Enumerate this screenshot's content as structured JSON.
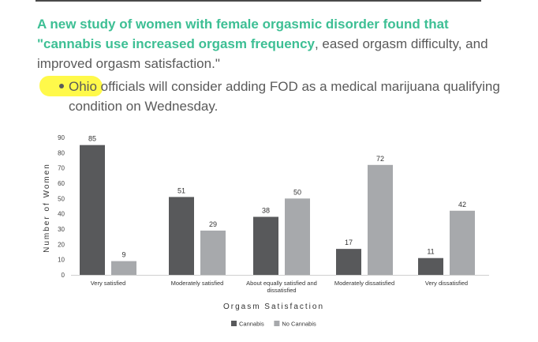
{
  "article": {
    "headline_bold": "A new study of women with female orgasmic disorder found that \"cannabis use increased orgasm frequency",
    "headline_rest": ", eased orgasm difficulty, and improved orgasm satisfaction.\"",
    "bullet_highlight": "Ohio",
    "bullet_rest": " officials will consider adding FOD as a medical marijuana qualifying condition on Wednesday."
  },
  "colors": {
    "headline": "#3dbf94",
    "highlight": "#fff94a",
    "cannabis": "#58595b",
    "no_cannabis": "#a7a9ac"
  },
  "chart_data": {
    "type": "bar",
    "categories": [
      [
        "Very satisfied"
      ],
      [
        "Moderately satisfied"
      ],
      [
        "About equally satisfied and",
        "dissatisfied"
      ],
      [
        "Moderately dissatisfied"
      ],
      [
        "Very dissatisfied"
      ]
    ],
    "series": [
      {
        "name": "Cannabis",
        "values": [
          85,
          51,
          38,
          17,
          11
        ]
      },
      {
        "name": "No Cannabis",
        "values": [
          9,
          29,
          50,
          72,
          42
        ]
      }
    ],
    "xlabel": "Orgasm Satisfaction",
    "ylabel": "Number of Women",
    "ylim": [
      0,
      90
    ],
    "yticks": [
      0,
      10,
      20,
      30,
      40,
      50,
      60,
      70,
      80,
      90
    ],
    "grid": false,
    "legend": "bottom-center"
  }
}
